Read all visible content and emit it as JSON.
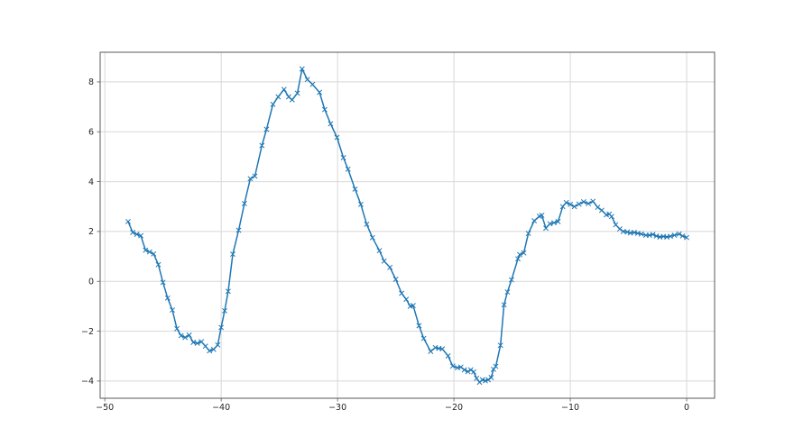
{
  "figure": {
    "background": "#ffffff",
    "title": ""
  },
  "chart_data": {
    "type": "line",
    "title": "",
    "xlabel": "",
    "ylabel": "",
    "grid": true,
    "legend": "none",
    "xlim": [
      -50.4,
      2.4
    ],
    "ylim": [
      -4.69,
      9.19
    ],
    "xticks": [
      {
        "v": -50,
        "label": "−50"
      },
      {
        "v": -40,
        "label": "−40"
      },
      {
        "v": -30,
        "label": "−30"
      },
      {
        "v": -20,
        "label": "−20"
      },
      {
        "v": -10,
        "label": "−10"
      },
      {
        "v": 0,
        "label": "0"
      }
    ],
    "yticks": [
      {
        "v": 8,
        "label": "8"
      },
      {
        "v": 6,
        "label": "6"
      },
      {
        "v": 4,
        "label": "4"
      },
      {
        "v": 2,
        "label": "2"
      },
      {
        "v": 0,
        "label": "0"
      },
      {
        "v": -2,
        "label": "−2"
      },
      {
        "v": -4,
        "label": "−4"
      }
    ],
    "colors": {
      "line": "#1f77b4",
      "grid": "#d8d8d8",
      "spine": "#595959",
      "tick_text": "#262626",
      "background": "#ffffff"
    },
    "marker": "x",
    "series": [
      {
        "name": "series-1",
        "x": [
          -48.0,
          -47.6,
          -47.25,
          -46.9,
          -46.5,
          -46.15,
          -45.8,
          -45.4,
          -45.0,
          -44.6,
          -44.2,
          -43.8,
          -43.45,
          -43.1,
          -42.75,
          -42.4,
          -42.05,
          -41.7,
          -41.35,
          -41.0,
          -40.65,
          -40.3,
          -40.0,
          -39.7,
          -39.4,
          -39.0,
          -38.5,
          -38.0,
          -37.5,
          -37.1,
          -36.5,
          -36.1,
          -35.55,
          -35.1,
          -34.6,
          -34.2,
          -33.9,
          -33.45,
          -33.05,
          -32.6,
          -32.15,
          -31.55,
          -31.1,
          -30.6,
          -30.05,
          -29.5,
          -29.1,
          -28.5,
          -28.0,
          -27.5,
          -27.0,
          -26.4,
          -26.0,
          -25.5,
          -25.0,
          -24.5,
          -24.1,
          -23.75,
          -23.5,
          -23.0,
          -22.6,
          -22.0,
          -21.6,
          -21.3,
          -21.0,
          -20.5,
          -20.1,
          -19.7,
          -19.4,
          -19.1,
          -18.8,
          -18.55,
          -18.3,
          -18.05,
          -17.8,
          -17.55,
          -17.3,
          -17.05,
          -16.8,
          -16.6,
          -16.4,
          -16.0,
          -15.7,
          -15.4,
          -15.05,
          -14.5,
          -14.35,
          -14.0,
          -13.6,
          -13.1,
          -12.65,
          -12.45,
          -12.1,
          -11.75,
          -11.4,
          -11.05,
          -10.65,
          -10.35,
          -10.0,
          -9.65,
          -9.25,
          -8.85,
          -8.45,
          -8.05,
          -7.65,
          -7.3,
          -6.9,
          -6.65,
          -6.45,
          -6.1,
          -5.75,
          -5.45,
          -5.1,
          -4.85,
          -4.5,
          -4.2,
          -3.9,
          -3.5,
          -3.2,
          -2.9,
          -2.6,
          -2.3,
          -2.0,
          -1.7,
          -1.4,
          -1.05,
          -0.65,
          -0.35,
          0.0
        ],
        "y": [
          2.4,
          1.96,
          1.89,
          1.83,
          1.25,
          1.18,
          1.1,
          0.67,
          -0.04,
          -0.67,
          -1.15,
          -1.9,
          -2.18,
          -2.25,
          -2.16,
          -2.45,
          -2.48,
          -2.42,
          -2.6,
          -2.79,
          -2.73,
          -2.55,
          -1.85,
          -1.18,
          -0.4,
          1.09,
          2.05,
          3.12,
          4.12,
          4.22,
          5.45,
          6.1,
          7.1,
          7.4,
          7.7,
          7.4,
          7.28,
          7.55,
          8.52,
          8.1,
          7.9,
          7.58,
          6.89,
          6.32,
          5.77,
          4.96,
          4.5,
          3.7,
          3.09,
          2.29,
          1.75,
          1.23,
          0.81,
          0.56,
          0.08,
          -0.48,
          -0.72,
          -1.0,
          -0.97,
          -1.78,
          -2.29,
          -2.81,
          -2.66,
          -2.69,
          -2.71,
          -2.99,
          -3.4,
          -3.47,
          -3.44,
          -3.55,
          -3.62,
          -3.55,
          -3.63,
          -3.89,
          -4.05,
          -3.95,
          -3.99,
          -3.95,
          -3.86,
          -3.53,
          -3.41,
          -2.57,
          -0.94,
          -0.43,
          0.06,
          0.9,
          1.07,
          1.14,
          1.92,
          2.43,
          2.61,
          2.65,
          2.13,
          2.31,
          2.35,
          2.4,
          3.0,
          3.16,
          3.09,
          3.0,
          3.1,
          3.19,
          3.12,
          3.21,
          2.97,
          2.85,
          2.67,
          2.7,
          2.6,
          2.27,
          2.1,
          2.0,
          1.98,
          1.94,
          1.96,
          1.93,
          1.9,
          1.85,
          1.85,
          1.88,
          1.82,
          1.78,
          1.8,
          1.78,
          1.81,
          1.85,
          1.9,
          1.82,
          1.76
        ]
      }
    ]
  }
}
